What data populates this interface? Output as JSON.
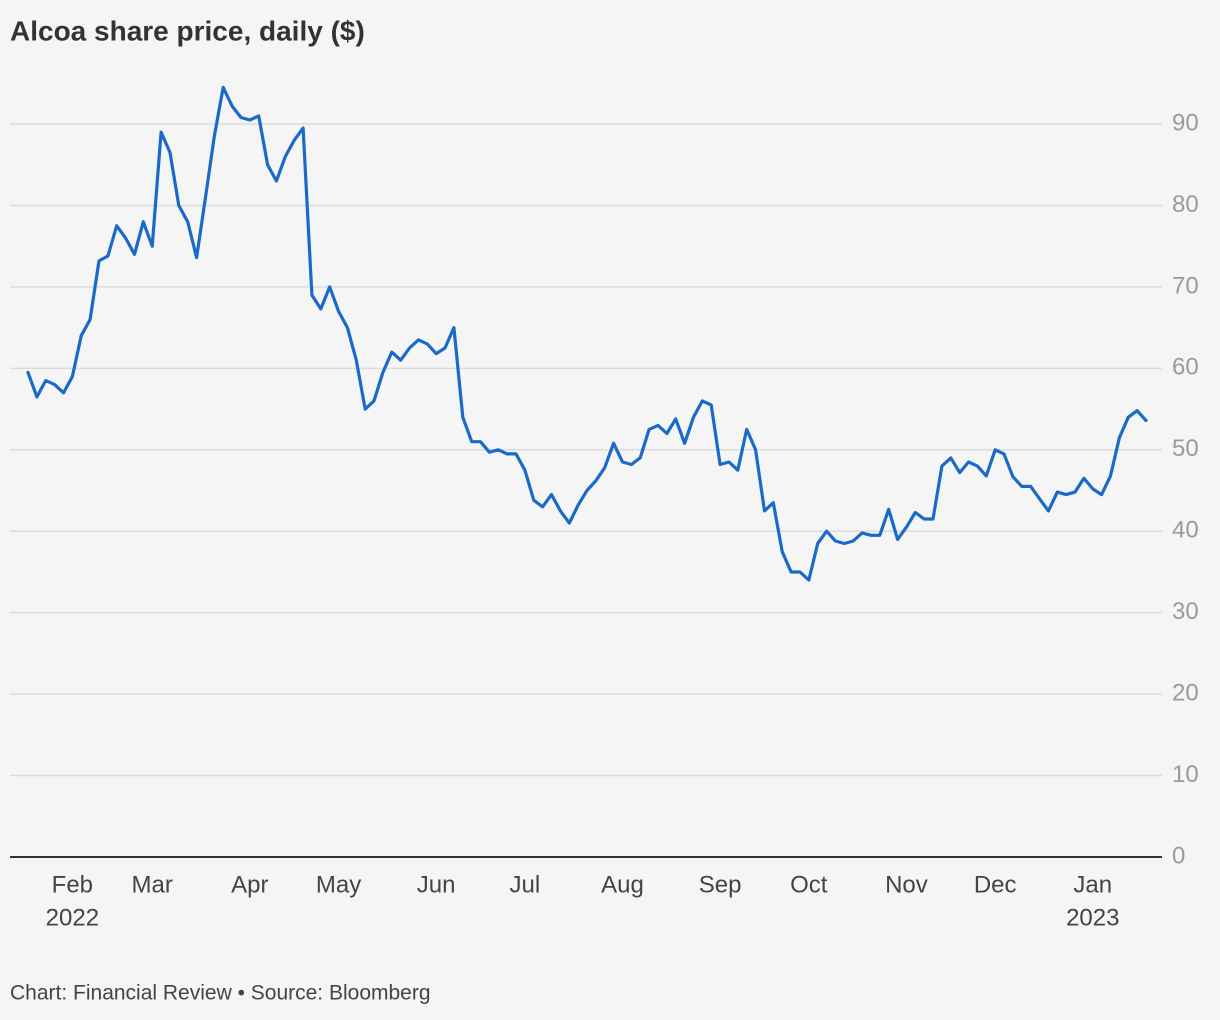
{
  "chart_data": {
    "type": "line",
    "title": "Alcoa share price, daily ($)",
    "source": "Chart: Financial Review • Source: Bloomberg",
    "categories": [
      null,
      null,
      null,
      null,
      null,
      "Feb",
      null,
      null,
      null,
      null,
      null,
      null,
      null,
      null,
      "Mar",
      null,
      null,
      null,
      null,
      null,
      null,
      null,
      null,
      null,
      null,
      "Apr",
      null,
      null,
      null,
      null,
      null,
      null,
      null,
      null,
      null,
      "May",
      null,
      null,
      null,
      null,
      null,
      null,
      null,
      null,
      null,
      null,
      "Jun",
      null,
      null,
      null,
      null,
      null,
      null,
      null,
      null,
      null,
      "Jul",
      null,
      null,
      null,
      null,
      null,
      null,
      null,
      null,
      null,
      null,
      "Aug",
      null,
      null,
      null,
      null,
      null,
      null,
      null,
      null,
      null,
      null,
      "Sep",
      null,
      null,
      null,
      null,
      null,
      null,
      null,
      null,
      null,
      "Oct",
      null,
      null,
      null,
      null,
      null,
      null,
      null,
      null,
      null,
      null,
      "Nov",
      null,
      null,
      null,
      null,
      null,
      null,
      null,
      null,
      null,
      "Dec",
      null,
      null,
      null,
      null,
      null,
      null,
      null,
      null,
      null,
      null,
      "Jan",
      null,
      null,
      null,
      null,
      null,
      null
    ],
    "year_labels": [
      {
        "month": "Feb",
        "label": "2022"
      },
      {
        "month": "Jan",
        "label": "2023"
      }
    ],
    "series": [
      {
        "name": "Alcoa",
        "color": "#1a6ac8",
        "values": [
          59.5,
          56.5,
          58.5,
          58,
          57,
          59,
          64,
          66,
          73.2,
          73.8,
          77.5,
          76,
          74,
          78,
          75,
          89,
          86.5,
          80,
          78,
          73.6,
          81,
          88.5,
          94.5,
          92.2,
          90.8,
          90.5,
          91,
          85,
          83,
          86,
          88,
          89.5,
          69,
          67.3,
          70,
          67,
          65,
          61,
          55,
          56,
          59.5,
          62,
          61,
          62.5,
          63.5,
          63,
          61.8,
          62.5,
          65,
          54,
          51,
          51,
          49.7,
          50,
          49.5,
          49.5,
          47.5,
          43.8,
          43,
          44.5,
          42.5,
          41,
          43.2,
          45,
          46.2,
          47.8,
          50.8,
          48.5,
          48.2,
          49,
          52.5,
          53,
          52,
          53.8,
          50.8,
          54,
          56,
          55.5,
          48.2,
          48.5,
          47.5,
          52.5,
          50,
          42.5,
          43.5,
          37.5,
          35,
          35,
          34,
          38.5,
          40,
          38.8,
          38.5,
          38.8,
          39.8,
          39.5,
          39.5,
          42.7,
          39,
          40.5,
          42.3,
          41.5,
          41.5,
          48,
          49,
          47.2,
          48.5,
          48,
          46.8,
          50,
          49.5,
          46.7,
          45.5,
          45.5,
          44,
          42.5,
          44.8,
          44.5,
          44.8,
          46.5,
          45.2,
          44.5,
          46.8,
          51.5,
          54,
          54.8,
          53.6
        ]
      }
    ],
    "ylim": [
      0,
      95
    ],
    "yticks": [
      0,
      10,
      20,
      30,
      40,
      50,
      60,
      70,
      80,
      90
    ],
    "grid": true
  }
}
